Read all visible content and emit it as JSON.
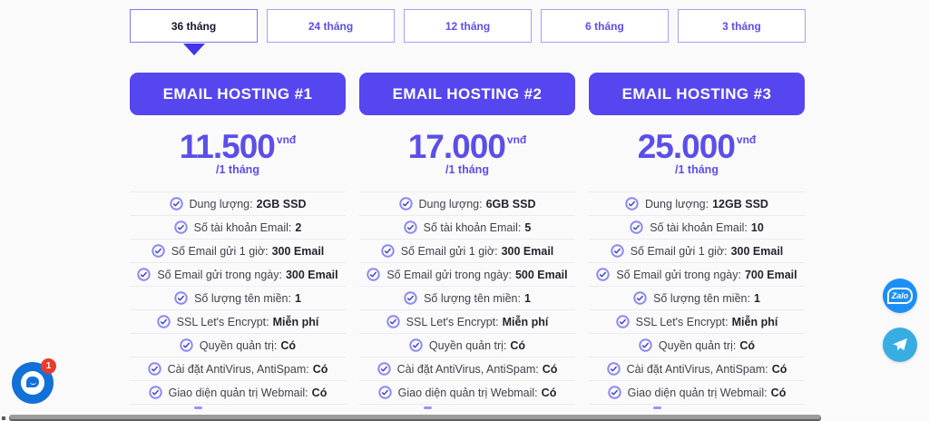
{
  "tabs": {
    "items": [
      {
        "label": "36 tháng",
        "active": true
      },
      {
        "label": "24 tháng",
        "active": false
      },
      {
        "label": "12 tháng",
        "active": false
      },
      {
        "label": "6 tháng",
        "active": false
      },
      {
        "label": "3 tháng",
        "active": false
      }
    ]
  },
  "plans": [
    {
      "name": "EMAIL HOSTING #1",
      "price": "11.500",
      "currency": "vnđ",
      "period": "/1 tháng",
      "features": [
        {
          "label": "Dung lượng:",
          "value": "2GB SSD"
        },
        {
          "label": "Số tài khoản Email:",
          "value": "2"
        },
        {
          "label": "Số Email gửi 1 giờ:",
          "value": "300 Email"
        },
        {
          "label": "Số Email gửi trong ngày:",
          "value": "300 Email"
        },
        {
          "label": "Số lượng tên miền:",
          "value": "1"
        },
        {
          "label": "SSL Let's Encrypt:",
          "value": "Miễn phí"
        },
        {
          "label": "Quyền quản trị:",
          "value": "Có"
        },
        {
          "label": "Cài đặt AntiVirus, AntiSpam:",
          "value": "Có"
        },
        {
          "label": "Giao diện quản trị Webmail:",
          "value": "Có"
        }
      ]
    },
    {
      "name": "EMAIL HOSTING #2",
      "price": "17.000",
      "currency": "vnđ",
      "period": "/1 tháng",
      "features": [
        {
          "label": "Dung lượng:",
          "value": "6GB SSD"
        },
        {
          "label": "Số tài khoản Email:",
          "value": "5"
        },
        {
          "label": "Số Email gửi 1 giờ:",
          "value": "300 Email"
        },
        {
          "label": "Số Email gửi trong ngày:",
          "value": "500 Email"
        },
        {
          "label": "Số lượng tên miền:",
          "value": "1"
        },
        {
          "label": "SSL Let's Encrypt:",
          "value": "Miễn phí"
        },
        {
          "label": "Quyền quản trị:",
          "value": "Có"
        },
        {
          "label": "Cài đặt AntiVirus, AntiSpam:",
          "value": "Có"
        },
        {
          "label": "Giao diện quản trị Webmail:",
          "value": "Có"
        }
      ]
    },
    {
      "name": "EMAIL HOSTING #3",
      "price": "25.000",
      "currency": "vnđ",
      "period": "/1 tháng",
      "features": [
        {
          "label": "Dung lượng:",
          "value": "12GB SSD"
        },
        {
          "label": "Số tài khoản Email:",
          "value": "10"
        },
        {
          "label": "Số Email gửi 1 giờ:",
          "value": "300 Email"
        },
        {
          "label": "Số Email gửi trong ngày:",
          "value": "700 Email"
        },
        {
          "label": "Số lượng tên miền:",
          "value": "1"
        },
        {
          "label": "SSL Let's Encrypt:",
          "value": "Miễn phí"
        },
        {
          "label": "Quyền quản trị:",
          "value": "Có"
        },
        {
          "label": "Cài đặt AntiVirus, AntiSpam:",
          "value": "Có"
        },
        {
          "label": "Giao diện quản trị Webmail:",
          "value": "Có"
        }
      ]
    }
  ],
  "floating": {
    "zalo_label": "Zalo",
    "chat_badge": "1"
  },
  "colors": {
    "primary_purple": "#5646ef",
    "price_purple": "#5b4fe9",
    "tab_text_purple": "#5b50e8",
    "check_ring": "#8f88f3",
    "check_mark": "#3146c0",
    "zalo_blue": "#1b8ff5",
    "telegram_blue": "#37aee2",
    "messenger_blue": "#1271d6",
    "badge_red": "#e83b2e"
  }
}
